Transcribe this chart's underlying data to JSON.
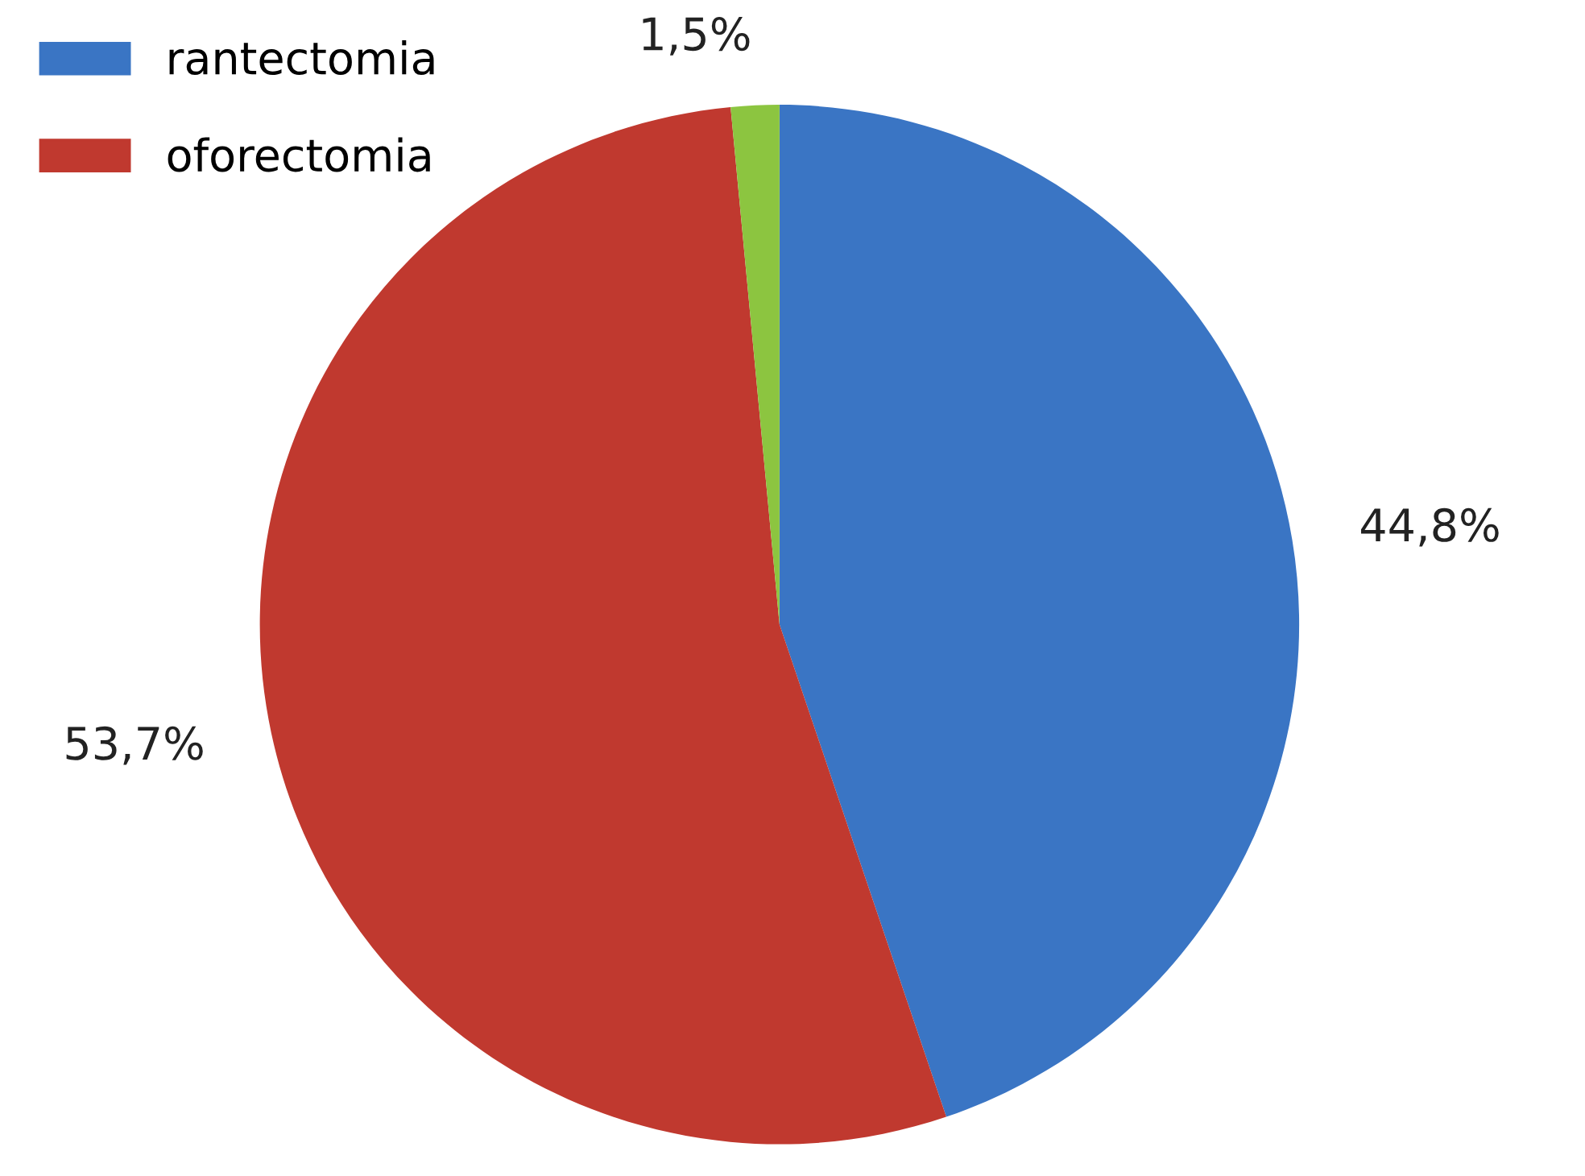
{
  "chart_data": {
    "type": "pie",
    "categories": [
      "rantectomia",
      "oforectomia",
      null
    ],
    "values": [
      44.8,
      53.7,
      1.5
    ],
    "colors": [
      "#3a75c4",
      "#c0392f",
      "#8cc540"
    ],
    "value_labels": [
      "44,8%",
      "53,7%",
      "1,5%"
    ],
    "legend": "top left"
  }
}
